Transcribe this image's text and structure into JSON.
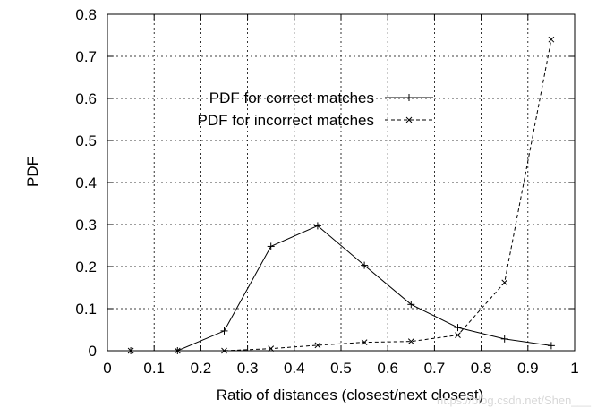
{
  "chart_data": {
    "type": "line",
    "title": "",
    "xlabel": "Ratio of distances (closest/next closest)",
    "ylabel": "PDF",
    "xlim": [
      0,
      1
    ],
    "ylim": [
      0,
      0.8
    ],
    "xticks": [
      "0",
      "0.1",
      "0.2",
      "0.3",
      "0.4",
      "0.5",
      "0.6",
      "0.7",
      "0.8",
      "0.9",
      "1"
    ],
    "yticks": [
      "0",
      "0.1",
      "0.2",
      "0.3",
      "0.4",
      "0.5",
      "0.6",
      "0.7",
      "0.8"
    ],
    "grid": true,
    "legend_position": "top-left",
    "series": [
      {
        "name": "PDF for correct matches",
        "line_style": "solid",
        "marker": "plus",
        "color": "#000000",
        "x": [
          0.05,
          0.15,
          0.25,
          0.35,
          0.45,
          0.55,
          0.65,
          0.75,
          0.85,
          0.95
        ],
        "y": [
          0.0,
          0.0,
          0.047,
          0.248,
          0.297,
          0.203,
          0.11,
          0.055,
          0.028,
          0.012
        ]
      },
      {
        "name": "PDF for incorrect matches",
        "line_style": "dashed",
        "marker": "cross",
        "color": "#000000",
        "x": [
          0.05,
          0.15,
          0.25,
          0.35,
          0.45,
          0.55,
          0.65,
          0.75,
          0.85,
          0.95
        ],
        "y": [
          0.0,
          0.0,
          0.0,
          0.005,
          0.013,
          0.02,
          0.022,
          0.037,
          0.162,
          0.74
        ]
      }
    ]
  },
  "watermark": "https://blog.csdn.net/Shen___"
}
